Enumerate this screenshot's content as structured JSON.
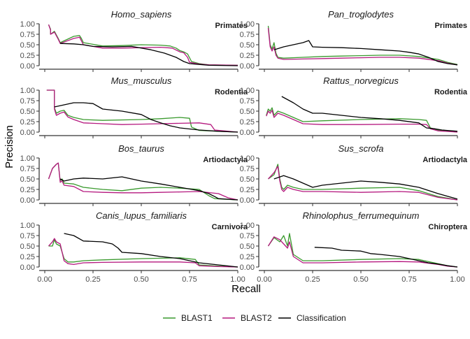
{
  "chart_data": {
    "type": "line",
    "xlabel": "Recall",
    "ylabel": "Precision",
    "xlim": [
      0,
      1
    ],
    "ylim": [
      0,
      1
    ],
    "x_ticks": [
      "0.00",
      "0.25",
      "0.50",
      "0.75",
      "1.00"
    ],
    "y_ticks": [
      "0.00",
      "0.25",
      "0.50",
      "0.75",
      "1.00"
    ],
    "grid": false,
    "legend": {
      "position": "bottom",
      "entries": [
        "BLAST1",
        "BLAST2",
        "Classification"
      ]
    },
    "colors": {
      "BLAST1": "#3a9a2e",
      "BLAST2": "#b5197f",
      "Classification": "#000000"
    },
    "panels": [
      {
        "title": "Homo_sapiens",
        "order": "Primates",
        "series": [
          {
            "name": "BLAST1",
            "x": [
              0.02,
              0.03,
              0.03,
              0.05,
              0.07,
              0.08,
              0.15,
              0.18,
              0.19,
              0.2,
              0.3,
              0.4,
              0.5,
              0.6,
              0.65,
              0.68,
              0.7,
              0.72,
              0.74,
              0.76,
              0.8,
              0.85,
              1.0
            ],
            "y": [
              0.98,
              0.87,
              0.75,
              0.82,
              0.65,
              0.55,
              0.7,
              0.72,
              0.65,
              0.55,
              0.47,
              0.48,
              0.5,
              0.49,
              0.47,
              0.42,
              0.36,
              0.33,
              0.28,
              0.1,
              0.05,
              0.02,
              0.01
            ]
          },
          {
            "name": "BLAST2",
            "x": [
              0.02,
              0.03,
              0.03,
              0.05,
              0.07,
              0.08,
              0.15,
              0.18,
              0.2,
              0.3,
              0.4,
              0.5,
              0.6,
              0.66,
              0.7,
              0.72,
              0.74,
              0.75,
              0.8,
              0.85,
              1.0
            ],
            "y": [
              0.98,
              0.85,
              0.75,
              0.8,
              0.63,
              0.53,
              0.65,
              0.68,
              0.5,
              0.42,
              0.42,
              0.43,
              0.44,
              0.42,
              0.33,
              0.31,
              0.2,
              0.08,
              0.04,
              0.02,
              0.01
            ]
          },
          {
            "name": "Classification",
            "x": [
              0.08,
              0.15,
              0.2,
              0.25,
              0.35,
              0.45,
              0.55,
              0.62,
              0.68,
              0.72,
              0.75,
              0.8,
              0.85,
              1.0
            ],
            "y": [
              0.53,
              0.52,
              0.5,
              0.46,
              0.45,
              0.46,
              0.38,
              0.3,
              0.2,
              0.1,
              0.05,
              0.03,
              0.01,
              0.0
            ]
          }
        ]
      },
      {
        "title": "Pan_troglodytes",
        "order": "Primates",
        "series": [
          {
            "name": "BLAST1",
            "x": [
              0.02,
              0.03,
              0.04,
              0.05,
              0.06,
              0.07,
              0.1,
              0.2,
              0.3,
              0.4,
              0.5,
              0.6,
              0.7,
              0.8,
              0.9,
              0.95,
              1.0
            ],
            "y": [
              0.95,
              0.5,
              0.4,
              0.55,
              0.3,
              0.2,
              0.18,
              0.2,
              0.22,
              0.23,
              0.24,
              0.25,
              0.25,
              0.22,
              0.15,
              0.08,
              0.03
            ]
          },
          {
            "name": "BLAST2",
            "x": [
              0.02,
              0.03,
              0.04,
              0.05,
              0.06,
              0.07,
              0.1,
              0.2,
              0.3,
              0.4,
              0.5,
              0.6,
              0.7,
              0.8,
              0.9,
              0.95,
              1.0
            ],
            "y": [
              0.9,
              0.45,
              0.35,
              0.45,
              0.25,
              0.18,
              0.15,
              0.16,
              0.17,
              0.18,
              0.19,
              0.2,
              0.2,
              0.18,
              0.12,
              0.06,
              0.02
            ]
          },
          {
            "name": "Classification",
            "x": [
              0.05,
              0.1,
              0.15,
              0.2,
              0.23,
              0.25,
              0.3,
              0.4,
              0.5,
              0.6,
              0.7,
              0.75,
              0.8,
              0.85,
              0.9,
              0.95,
              1.0
            ],
            "y": [
              0.38,
              0.45,
              0.5,
              0.55,
              0.6,
              0.45,
              0.44,
              0.43,
              0.41,
              0.38,
              0.35,
              0.32,
              0.28,
              0.2,
              0.1,
              0.05,
              0.02
            ]
          }
        ]
      },
      {
        "title": "Mus_musculus",
        "order": "Rodentia",
        "series": [
          {
            "name": "BLAST1",
            "x": [
              0.01,
              0.05,
              0.05,
              0.06,
              0.08,
              0.1,
              0.12,
              0.15,
              0.2,
              0.3,
              0.5,
              0.6,
              0.7,
              0.75,
              0.76,
              0.8,
              1.0
            ],
            "y": [
              1.0,
              1.0,
              0.58,
              0.45,
              0.5,
              0.52,
              0.4,
              0.35,
              0.3,
              0.28,
              0.3,
              0.32,
              0.35,
              0.33,
              0.12,
              0.04,
              0.0
            ]
          },
          {
            "name": "BLAST2",
            "x": [
              0.01,
              0.05,
              0.05,
              0.06,
              0.08,
              0.1,
              0.12,
              0.15,
              0.2,
              0.3,
              0.4,
              0.5,
              0.6,
              0.7,
              0.8,
              0.86,
              0.88,
              1.0
            ],
            "y": [
              1.0,
              1.0,
              0.55,
              0.4,
              0.45,
              0.48,
              0.36,
              0.3,
              0.22,
              0.2,
              0.18,
              0.19,
              0.2,
              0.21,
              0.22,
              0.18,
              0.05,
              0.0
            ]
          },
          {
            "name": "Classification",
            "x": [
              0.05,
              0.1,
              0.15,
              0.2,
              0.25,
              0.3,
              0.4,
              0.5,
              0.55,
              0.6,
              0.65,
              0.7,
              0.8,
              0.9,
              1.0
            ],
            "y": [
              0.6,
              0.65,
              0.7,
              0.7,
              0.68,
              0.55,
              0.5,
              0.42,
              0.3,
              0.22,
              0.15,
              0.1,
              0.05,
              0.02,
              0.0
            ]
          }
        ]
      },
      {
        "title": "Rattus_norvegicus",
        "order": "Rodentia",
        "series": [
          {
            "name": "BLAST1",
            "x": [
              0.01,
              0.02,
              0.03,
              0.04,
              0.05,
              0.07,
              0.1,
              0.15,
              0.2,
              0.3,
              0.5,
              0.7,
              0.8,
              0.84,
              0.86,
              0.9,
              1.0
            ],
            "y": [
              0.4,
              0.55,
              0.5,
              0.58,
              0.4,
              0.5,
              0.45,
              0.35,
              0.25,
              0.27,
              0.3,
              0.32,
              0.3,
              0.28,
              0.1,
              0.05,
              0.0
            ]
          },
          {
            "name": "BLAST2",
            "x": [
              0.01,
              0.02,
              0.03,
              0.04,
              0.05,
              0.07,
              0.1,
              0.15,
              0.2,
              0.3,
              0.5,
              0.7,
              0.8,
              0.84,
              0.86,
              0.9,
              1.0
            ],
            "y": [
              0.38,
              0.5,
              0.45,
              0.52,
              0.35,
              0.45,
              0.4,
              0.3,
              0.2,
              0.18,
              0.18,
              0.19,
              0.19,
              0.18,
              0.08,
              0.03,
              0.0
            ]
          },
          {
            "name": "Classification",
            "x": [
              0.09,
              0.15,
              0.2,
              0.25,
              0.3,
              0.4,
              0.5,
              0.6,
              0.7,
              0.8,
              0.84,
              0.88,
              0.92,
              1.0
            ],
            "y": [
              0.85,
              0.7,
              0.55,
              0.45,
              0.45,
              0.4,
              0.35,
              0.32,
              0.28,
              0.22,
              0.1,
              0.08,
              0.05,
              0.02
            ]
          }
        ]
      },
      {
        "title": "Bos_taurus",
        "order": "Artiodactyla",
        "series": [
          {
            "name": "BLAST1",
            "x": [
              0.02,
              0.04,
              0.06,
              0.07,
              0.08,
              0.09,
              0.1,
              0.15,
              0.2,
              0.3,
              0.4,
              0.5,
              0.6,
              0.7,
              0.8,
              0.85,
              0.88,
              1.0
            ],
            "y": [
              0.5,
              0.75,
              0.85,
              0.88,
              0.45,
              0.5,
              0.4,
              0.38,
              0.3,
              0.25,
              0.22,
              0.28,
              0.3,
              0.28,
              0.25,
              0.1,
              0.03,
              0.0
            ]
          },
          {
            "name": "BLAST2",
            "x": [
              0.02,
              0.04,
              0.06,
              0.07,
              0.08,
              0.09,
              0.1,
              0.15,
              0.2,
              0.3,
              0.4,
              0.5,
              0.6,
              0.7,
              0.8,
              0.9,
              0.95,
              1.0
            ],
            "y": [
              0.5,
              0.75,
              0.85,
              0.88,
              0.42,
              0.45,
              0.35,
              0.32,
              0.2,
              0.18,
              0.17,
              0.17,
              0.18,
              0.19,
              0.2,
              0.15,
              0.05,
              0.0
            ]
          },
          {
            "name": "Classification",
            "x": [
              0.08,
              0.1,
              0.15,
              0.2,
              0.3,
              0.4,
              0.5,
              0.6,
              0.7,
              0.75,
              0.8,
              0.85,
              0.88,
              0.9,
              1.0
            ],
            "y": [
              0.5,
              0.45,
              0.5,
              0.52,
              0.5,
              0.55,
              0.45,
              0.38,
              0.3,
              0.26,
              0.22,
              0.15,
              0.08,
              0.03,
              0.0
            ]
          }
        ]
      },
      {
        "title": "Sus_scrofa",
        "order": "Artiodactyla",
        "series": [
          {
            "name": "BLAST1",
            "x": [
              0.02,
              0.05,
              0.07,
              0.08,
              0.09,
              0.1,
              0.12,
              0.15,
              0.2,
              0.3,
              0.5,
              0.7,
              0.8,
              0.9,
              1.0
            ],
            "y": [
              0.5,
              0.6,
              0.85,
              0.5,
              0.3,
              0.25,
              0.35,
              0.3,
              0.25,
              0.25,
              0.28,
              0.3,
              0.22,
              0.08,
              0.0
            ]
          },
          {
            "name": "BLAST2",
            "x": [
              0.02,
              0.05,
              0.07,
              0.08,
              0.09,
              0.1,
              0.12,
              0.15,
              0.2,
              0.3,
              0.5,
              0.7,
              0.8,
              0.9,
              1.0
            ],
            "y": [
              0.5,
              0.65,
              0.8,
              0.45,
              0.25,
              0.2,
              0.3,
              0.25,
              0.2,
              0.2,
              0.18,
              0.2,
              0.18,
              0.06,
              0.0
            ]
          },
          {
            "name": "Classification",
            "x": [
              0.05,
              0.1,
              0.15,
              0.2,
              0.25,
              0.3,
              0.4,
              0.5,
              0.6,
              0.7,
              0.8,
              0.9,
              1.0
            ],
            "y": [
              0.5,
              0.58,
              0.5,
              0.4,
              0.3,
              0.35,
              0.4,
              0.45,
              0.42,
              0.38,
              0.3,
              0.15,
              0.02
            ]
          }
        ]
      },
      {
        "title": "Canis_lupus_familiaris",
        "order": "Carnivora",
        "series": [
          {
            "name": "BLAST1",
            "x": [
              0.02,
              0.04,
              0.05,
              0.06,
              0.08,
              0.1,
              0.12,
              0.15,
              0.2,
              0.3,
              0.5,
              0.7,
              0.78,
              0.8,
              0.9,
              1.0
            ],
            "y": [
              0.5,
              0.5,
              0.65,
              0.55,
              0.5,
              0.2,
              0.12,
              0.12,
              0.15,
              0.17,
              0.2,
              0.22,
              0.18,
              0.05,
              0.02,
              0.0
            ]
          },
          {
            "name": "BLAST2",
            "x": [
              0.02,
              0.04,
              0.05,
              0.06,
              0.08,
              0.1,
              0.12,
              0.15,
              0.2,
              0.3,
              0.5,
              0.7,
              0.78,
              0.8,
              0.9,
              1.0
            ],
            "y": [
              0.5,
              0.6,
              0.68,
              0.6,
              0.55,
              0.15,
              0.08,
              0.06,
              0.1,
              0.11,
              0.12,
              0.12,
              0.1,
              0.03,
              0.01,
              0.0
            ]
          },
          {
            "name": "Classification",
            "x": [
              0.1,
              0.15,
              0.2,
              0.3,
              0.35,
              0.38,
              0.4,
              0.5,
              0.6,
              0.7,
              0.8,
              0.9,
              1.0
            ],
            "y": [
              0.8,
              0.75,
              0.62,
              0.6,
              0.55,
              0.45,
              0.35,
              0.32,
              0.25,
              0.2,
              0.1,
              0.05,
              0.0
            ]
          }
        ]
      },
      {
        "title": "Rhinolophus_ferrumequinum",
        "order": "Chiroptera",
        "series": [
          {
            "name": "BLAST1",
            "x": [
              0.02,
              0.05,
              0.08,
              0.1,
              0.12,
              0.13,
              0.15,
              0.2,
              0.3,
              0.5,
              0.7,
              0.8,
              0.9,
              0.95,
              1.0
            ],
            "y": [
              0.5,
              0.7,
              0.6,
              0.75,
              0.5,
              0.8,
              0.3,
              0.15,
              0.15,
              0.18,
              0.2,
              0.18,
              0.08,
              0.03,
              0.0
            ]
          },
          {
            "name": "BLAST2",
            "x": [
              0.02,
              0.05,
              0.08,
              0.1,
              0.12,
              0.13,
              0.15,
              0.2,
              0.3,
              0.5,
              0.7,
              0.8,
              0.9,
              0.95,
              1.0
            ],
            "y": [
              0.5,
              0.72,
              0.65,
              0.55,
              0.45,
              0.6,
              0.25,
              0.1,
              0.1,
              0.12,
              0.13,
              0.12,
              0.06,
              0.02,
              0.0
            ]
          },
          {
            "name": "Classification",
            "x": [
              0.26,
              0.35,
              0.4,
              0.5,
              0.55,
              0.6,
              0.7,
              0.75,
              0.8,
              0.85,
              0.9,
              0.95,
              1.0
            ],
            "y": [
              0.47,
              0.45,
              0.4,
              0.38,
              0.32,
              0.3,
              0.25,
              0.2,
              0.15,
              0.1,
              0.07,
              0.03,
              0.0
            ]
          }
        ]
      }
    ]
  }
}
